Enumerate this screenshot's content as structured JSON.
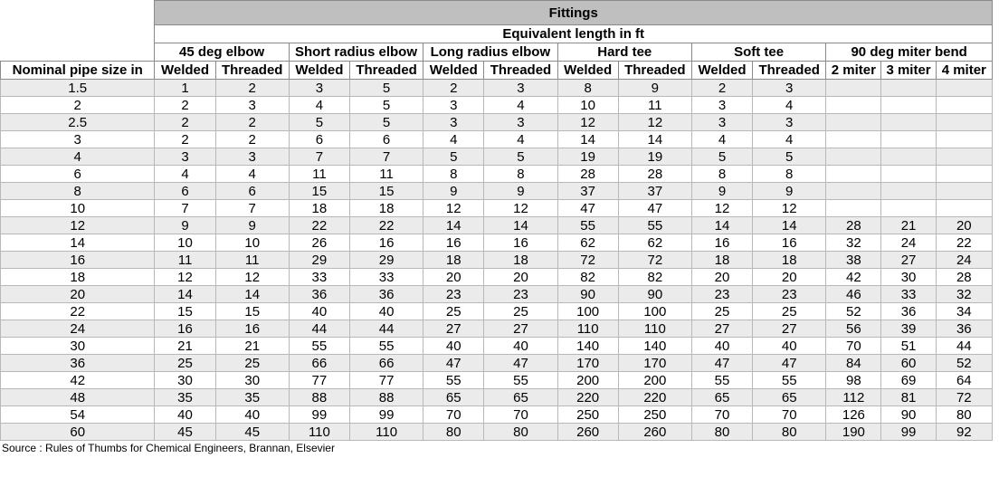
{
  "header": {
    "fittings": "Fittings",
    "equivalent": "Equivalent length in ft",
    "nominal": "Nominal pipe size in",
    "groups": [
      "45 deg elbow",
      "Short radius elbow",
      "Long radius elbow",
      "Hard tee",
      "Soft tee",
      "90 deg miter bend"
    ],
    "sub": [
      "Welded",
      "Threaded",
      "Welded",
      "Threaded",
      "Welded",
      "Threaded",
      "Welded",
      "Threaded",
      "Welded",
      "Threaded",
      "2 miter",
      "3 miter",
      "4 miter"
    ]
  },
  "rows": [
    [
      "1.5",
      "1",
      "2",
      "3",
      "5",
      "2",
      "3",
      "8",
      "9",
      "2",
      "3",
      "",
      "",
      ""
    ],
    [
      "2",
      "2",
      "3",
      "4",
      "5",
      "3",
      "4",
      "10",
      "11",
      "3",
      "4",
      "",
      "",
      ""
    ],
    [
      "2.5",
      "2",
      "2",
      "5",
      "5",
      "3",
      "3",
      "12",
      "12",
      "3",
      "3",
      "",
      "",
      ""
    ],
    [
      "3",
      "2",
      "2",
      "6",
      "6",
      "4",
      "4",
      "14",
      "14",
      "4",
      "4",
      "",
      "",
      ""
    ],
    [
      "4",
      "3",
      "3",
      "7",
      "7",
      "5",
      "5",
      "19",
      "19",
      "5",
      "5",
      "",
      "",
      ""
    ],
    [
      "6",
      "4",
      "4",
      "11",
      "11",
      "8",
      "8",
      "28",
      "28",
      "8",
      "8",
      "",
      "",
      ""
    ],
    [
      "8",
      "6",
      "6",
      "15",
      "15",
      "9",
      "9",
      "37",
      "37",
      "9",
      "9",
      "",
      "",
      ""
    ],
    [
      "10",
      "7",
      "7",
      "18",
      "18",
      "12",
      "12",
      "47",
      "47",
      "12",
      "12",
      "",
      "",
      ""
    ],
    [
      "12",
      "9",
      "9",
      "22",
      "22",
      "14",
      "14",
      "55",
      "55",
      "14",
      "14",
      "28",
      "21",
      "20"
    ],
    [
      "14",
      "10",
      "10",
      "26",
      "16",
      "16",
      "16",
      "62",
      "62",
      "16",
      "16",
      "32",
      "24",
      "22"
    ],
    [
      "16",
      "11",
      "11",
      "29",
      "29",
      "18",
      "18",
      "72",
      "72",
      "18",
      "18",
      "38",
      "27",
      "24"
    ],
    [
      "18",
      "12",
      "12",
      "33",
      "33",
      "20",
      "20",
      "82",
      "82",
      "20",
      "20",
      "42",
      "30",
      "28"
    ],
    [
      "20",
      "14",
      "14",
      "36",
      "36",
      "23",
      "23",
      "90",
      "90",
      "23",
      "23",
      "46",
      "33",
      "32"
    ],
    [
      "22",
      "15",
      "15",
      "40",
      "40",
      "25",
      "25",
      "100",
      "100",
      "25",
      "25",
      "52",
      "36",
      "34"
    ],
    [
      "24",
      "16",
      "16",
      "44",
      "44",
      "27",
      "27",
      "110",
      "110",
      "27",
      "27",
      "56",
      "39",
      "36"
    ],
    [
      "30",
      "21",
      "21",
      "55",
      "55",
      "40",
      "40",
      "140",
      "140",
      "40",
      "40",
      "70",
      "51",
      "44"
    ],
    [
      "36",
      "25",
      "25",
      "66",
      "66",
      "47",
      "47",
      "170",
      "170",
      "47",
      "47",
      "84",
      "60",
      "52"
    ],
    [
      "42",
      "30",
      "30",
      "77",
      "77",
      "55",
      "55",
      "200",
      "200",
      "55",
      "55",
      "98",
      "69",
      "64"
    ],
    [
      "48",
      "35",
      "35",
      "88",
      "88",
      "65",
      "65",
      "220",
      "220",
      "65",
      "65",
      "112",
      "81",
      "72"
    ],
    [
      "54",
      "40",
      "40",
      "99",
      "99",
      "70",
      "70",
      "250",
      "250",
      "70",
      "70",
      "126",
      "90",
      "80"
    ],
    [
      "60",
      "45",
      "45",
      "110",
      "110",
      "80",
      "80",
      "260",
      "260",
      "80",
      "80",
      "190",
      "99",
      "92"
    ]
  ],
  "source": "Source : Rules of Thumbs for Chemical Engineers, Brannan, Elsevier"
}
